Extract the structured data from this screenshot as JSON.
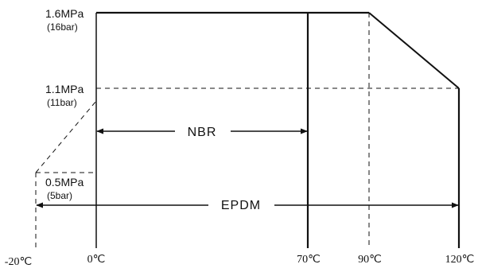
{
  "chart_data": {
    "type": "line",
    "x_unit": "℃",
    "y_unit": "MPa",
    "x_ticks": [
      {
        "value": -20,
        "label": "-20℃"
      },
      {
        "value": 0,
        "label": "0℃"
      },
      {
        "value": 70,
        "label": "70℃"
      },
      {
        "value": 90,
        "label": "90℃"
      },
      {
        "value": 120,
        "label": "120℃"
      }
    ],
    "y_ticks": [
      {
        "value": 1.6,
        "label": "1.6MPa",
        "sublabel": "(16bar)"
      },
      {
        "value": 1.1,
        "label": "1.1MPa",
        "sublabel": "(11bar)"
      },
      {
        "value": 0.5,
        "label": "0.5MPa",
        "sublabel": "(5bar)"
      }
    ],
    "series": [
      {
        "name": "NBR",
        "x": [
          0,
          0,
          70,
          70
        ],
        "y": [
          0,
          1.6,
          1.6,
          0
        ],
        "range": [
          0,
          70
        ]
      },
      {
        "name": "EPDM",
        "x": [
          -20,
          -20,
          0,
          0,
          90,
          120,
          120
        ],
        "y": [
          0,
          0.5,
          1.1,
          1.6,
          1.6,
          1.1,
          0
        ],
        "range": [
          -20,
          120
        ]
      }
    ],
    "xlim": [
      -20,
      120
    ],
    "ylim": [
      0,
      1.6
    ]
  }
}
